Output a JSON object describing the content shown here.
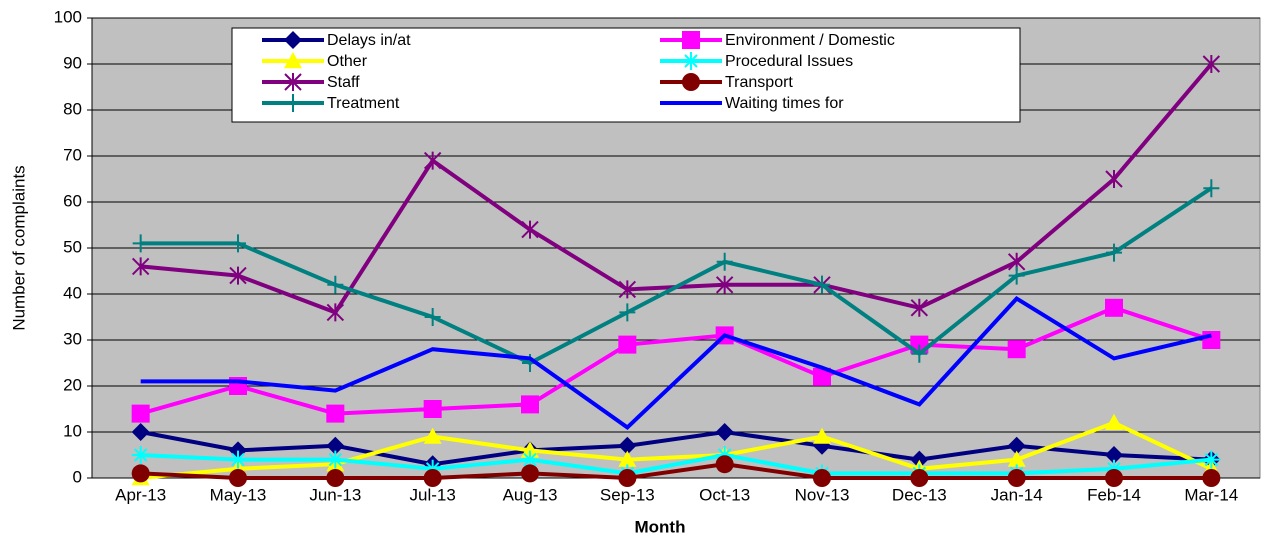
{
  "chart_data": {
    "type": "line",
    "x_label": "Month",
    "y_label": "Number of complaints",
    "categories": [
      "Apr-13",
      "May-13",
      "Jun-13",
      "Jul-13",
      "Aug-13",
      "Sep-13",
      "Oct-13",
      "Nov-13",
      "Dec-13",
      "Jan-14",
      "Feb-14",
      "Mar-14"
    ],
    "ylim": [
      0,
      100
    ],
    "yticks": [
      0,
      10,
      20,
      30,
      40,
      50,
      60,
      70,
      80,
      90,
      100
    ],
    "grid": true,
    "series": [
      {
        "name": "Delays in/at",
        "color": "#000080",
        "marker": "diamond",
        "values": [
          10,
          6,
          7,
          3,
          6,
          7,
          10,
          7,
          4,
          7,
          5,
          4
        ]
      },
      {
        "name": "Environment / Domestic",
        "color": "#ff00ff",
        "marker": "square",
        "values": [
          14,
          20,
          14,
          15,
          16,
          29,
          31,
          22,
          29,
          28,
          37,
          30
        ]
      },
      {
        "name": "Other",
        "color": "#ffff00",
        "marker": "triangle",
        "values": [
          0,
          2,
          3,
          9,
          6,
          4,
          5,
          9,
          2,
          4,
          12,
          2
        ]
      },
      {
        "name": "Procedural Issues",
        "color": "#00ffff",
        "marker": "asterisk",
        "values": [
          5,
          4,
          4,
          2,
          4,
          1,
          5,
          1,
          1,
          1,
          2,
          4
        ]
      },
      {
        "name": "Staff",
        "color": "#800080",
        "marker": "xstar",
        "values": [
          46,
          44,
          36,
          69,
          54,
          41,
          42,
          42,
          37,
          47,
          65,
          90
        ]
      },
      {
        "name": "Transport",
        "color": "#800000",
        "marker": "circle",
        "values": [
          1,
          0,
          0,
          0,
          1,
          0,
          3,
          0,
          0,
          0,
          0,
          0
        ]
      },
      {
        "name": "Treatment",
        "color": "#008080",
        "marker": "plus",
        "values": [
          51,
          51,
          42,
          35,
          25,
          36,
          47,
          42,
          27,
          44,
          49,
          63
        ]
      },
      {
        "name": "Waiting times for",
        "color": "#0000ff",
        "marker": "none",
        "values": [
          21,
          21,
          19,
          28,
          26,
          11,
          31,
          24,
          16,
          39,
          26,
          31
        ]
      }
    ]
  }
}
